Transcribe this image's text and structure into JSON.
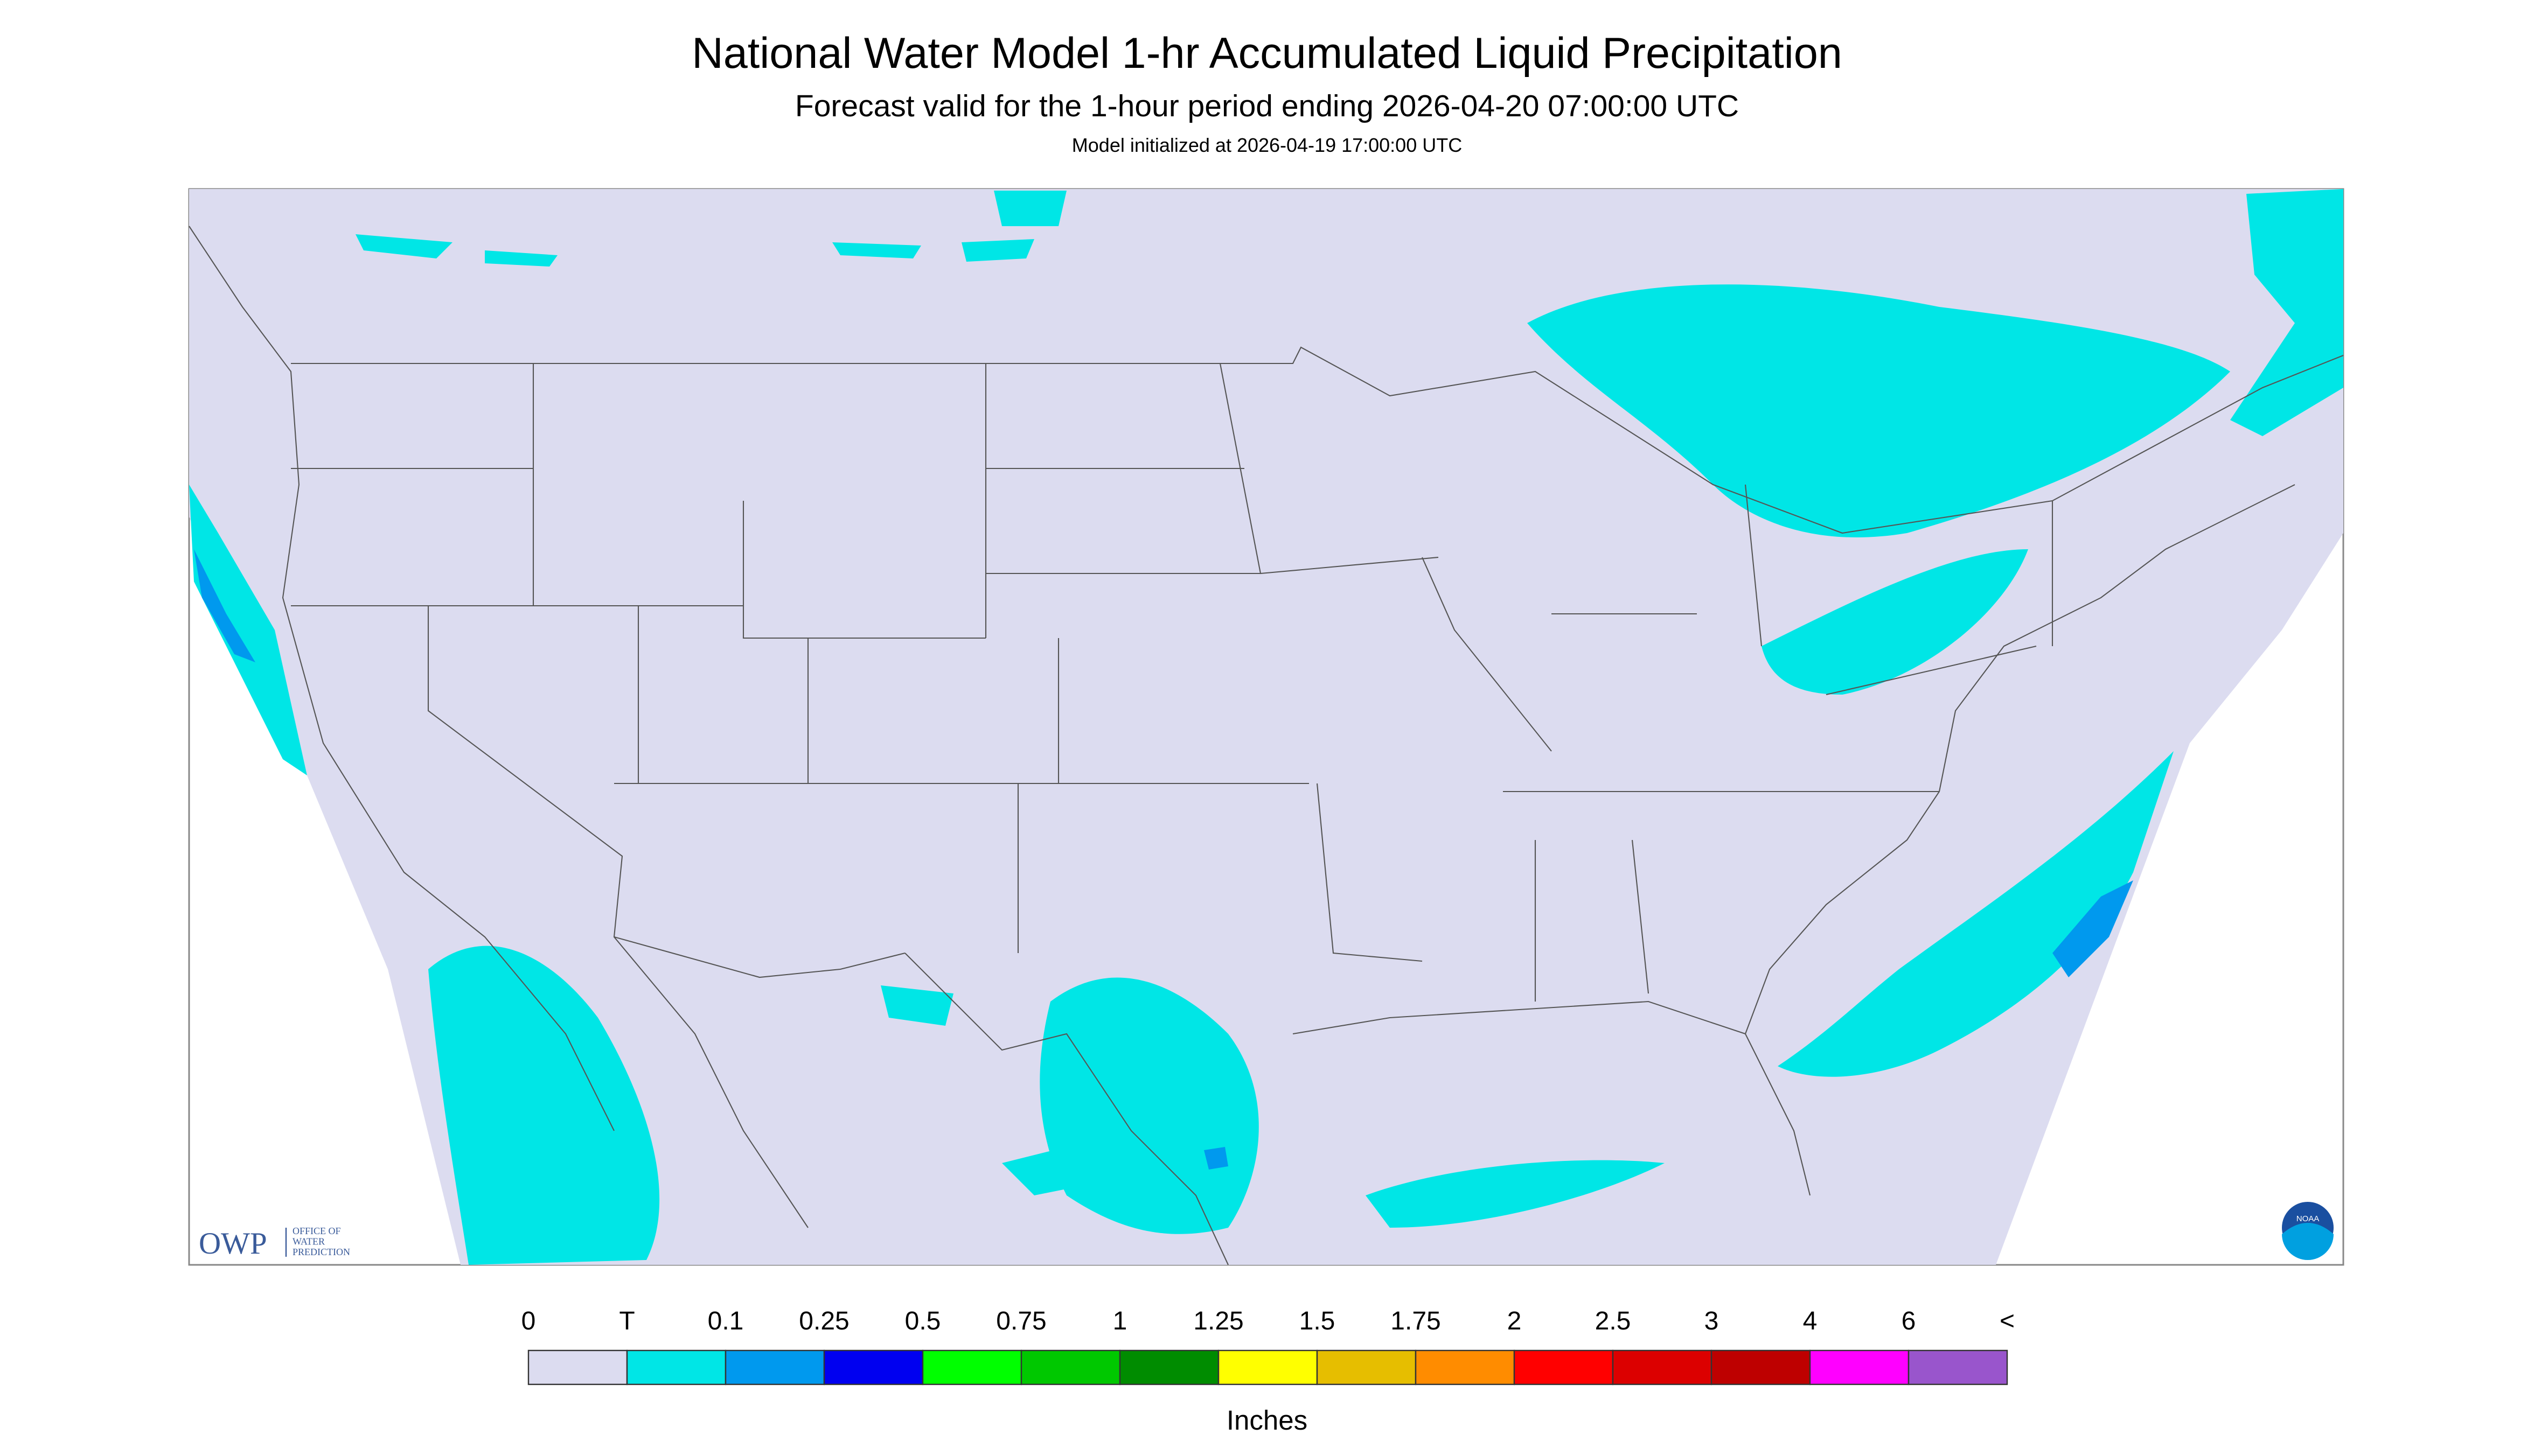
{
  "header": {
    "title": "National Water Model 1-hr Accumulated Liquid Precipitation",
    "subtitle": "Forecast valid for the 1-hour period ending 2026-04-20 07:00:00 UTC",
    "note": "Model initialized at 2026-04-19 17:00:00 UTC"
  },
  "logos": {
    "owp": "OWP",
    "owp_lines": [
      "OFFICE OF",
      "WATER",
      "PREDICTION"
    ],
    "noaa": "NOAA"
  },
  "legend": {
    "labels": [
      "0",
      "T",
      "0.1",
      "0.25",
      "0.5",
      "0.75",
      "1",
      "1.25",
      "1.5",
      "1.75",
      "2",
      "2.5",
      "3",
      "4",
      "6",
      "<"
    ],
    "colors": [
      "#dcdcf0",
      "#00e6e6",
      "#0099ee",
      "#0000f0",
      "#00ff00",
      "#00c800",
      "#008c00",
      "#ffff00",
      "#e6be00",
      "#ff8c00",
      "#ff0000",
      "#dc0000",
      "#be0000",
      "#ff00ff",
      "#9955cc"
    ],
    "unit": "Inches"
  }
}
